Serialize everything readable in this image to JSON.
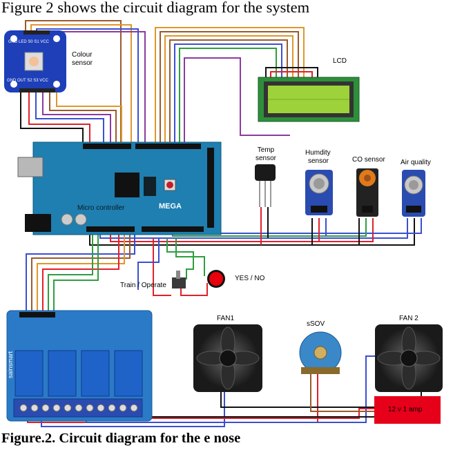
{
  "heading": "Figure 2 shows the circuit diagram for the system",
  "caption": "Figure.2. Circuit diagram for the e nose",
  "components": {
    "colour_sensor": {
      "label_line1": "Colour",
      "label_line2": "sensor",
      "pins_top": "GND LED S0 S1 VCC",
      "pins_bottom": "GND OUT S2 S3 VCC"
    },
    "lcd": {
      "label": "LCD"
    },
    "controller": {
      "label": "Micro controller",
      "board_text": "MEGA"
    },
    "temp_sensor": {
      "label_line1": "Temp",
      "label_line2": "sensor"
    },
    "humidity_sensor": {
      "label_line1": "Humdity",
      "label_line2": "sensor"
    },
    "co_sensor": {
      "label": "CO sensor"
    },
    "air_quality": {
      "label": "Air quality"
    },
    "mode_switch": {
      "label": "Train / Operate"
    },
    "indicator": {
      "label": "YES / NO"
    },
    "fan1": {
      "label": "FAN1"
    },
    "fan2": {
      "label": "FAN 2"
    },
    "valve": {
      "label": "sSOV"
    },
    "power_supply": {
      "label": "12 v 1 amp"
    },
    "relay": {
      "brand": "sainsmart"
    }
  },
  "wire_colors": {
    "black": "#111111",
    "red": "#e0202a",
    "blue": "#3a4fcf",
    "brown": "#9a5a2a",
    "orange": "#e0962a",
    "green": "#2e9e3e",
    "purple": "#8a3aa0",
    "grey": "#888888"
  },
  "board_color": "#1e7fb0",
  "lcd_screen_color": "#9ed23a",
  "indicator_color": "#e8000c"
}
